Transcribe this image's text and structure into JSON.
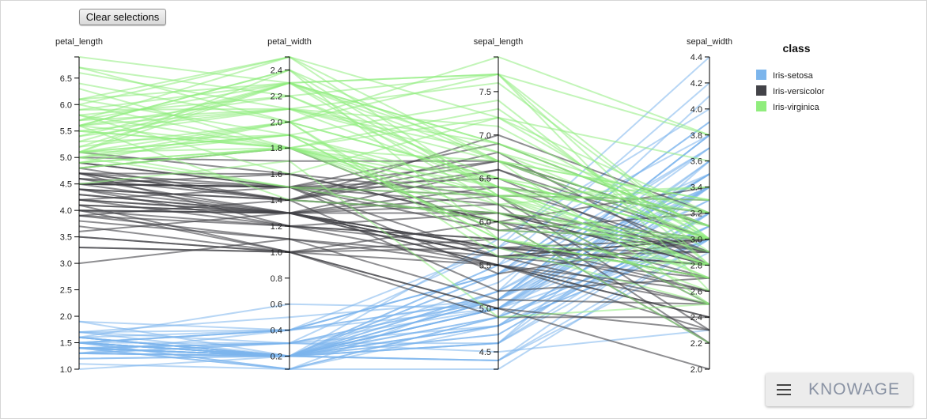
{
  "toolbar": {
    "clear_label": "Clear selections"
  },
  "brand": {
    "name": "KNOWAGE"
  },
  "chart_data": {
    "type": "parallel",
    "dimensions": [
      {
        "name": "petal_length",
        "range": [
          1.0,
          6.9
        ],
        "ticks": [
          "1.0",
          "1.5",
          "2.0",
          "2.5",
          "3.0",
          "3.5",
          "4.0",
          "4.5",
          "5.0",
          "5.5",
          "6.0",
          "6.5"
        ]
      },
      {
        "name": "petal_width",
        "range": [
          0.1,
          2.5
        ],
        "ticks": [
          "0.2",
          "0.4",
          "0.6",
          "0.8",
          "1.0",
          "1.2",
          "1.4",
          "1.6",
          "1.8",
          "2.0",
          "2.2",
          "2.4"
        ]
      },
      {
        "name": "sepal_length",
        "range": [
          4.3,
          7.9
        ],
        "ticks": [
          "4.5",
          "5.0",
          "5.5",
          "6.0",
          "6.5",
          "7.0",
          "7.5"
        ]
      },
      {
        "name": "sepal_width",
        "range": [
          2.0,
          4.4
        ],
        "ticks": [
          "2.0",
          "2.2",
          "2.4",
          "2.6",
          "2.8",
          "3.0",
          "3.2",
          "3.4",
          "3.6",
          "3.8",
          "4.0",
          "4.2",
          "4.4"
        ]
      }
    ],
    "legend": {
      "title": "class",
      "position": "right",
      "items": [
        {
          "label": "Iris-setosa",
          "color": "#7cb5ec"
        },
        {
          "label": "Iris-versicolor",
          "color": "#434348"
        },
        {
          "label": "Iris-virginica",
          "color": "#90ed7d"
        }
      ]
    },
    "series": [
      {
        "name": "Iris-setosa",
        "color": "#7cb5ec",
        "rows": [
          [
            1.4,
            0.2,
            5.1,
            3.5
          ],
          [
            1.4,
            0.2,
            4.9,
            3.0
          ],
          [
            1.3,
            0.2,
            4.7,
            3.2
          ],
          [
            1.5,
            0.2,
            4.6,
            3.1
          ],
          [
            1.4,
            0.2,
            5.0,
            3.6
          ],
          [
            1.7,
            0.4,
            5.4,
            3.9
          ],
          [
            1.4,
            0.3,
            4.6,
            3.4
          ],
          [
            1.5,
            0.2,
            5.0,
            3.4
          ],
          [
            1.4,
            0.2,
            4.4,
            2.9
          ],
          [
            1.5,
            0.1,
            4.9,
            3.1
          ],
          [
            1.5,
            0.2,
            5.4,
            3.7
          ],
          [
            1.6,
            0.2,
            4.8,
            3.4
          ],
          [
            1.4,
            0.1,
            4.8,
            3.0
          ],
          [
            1.1,
            0.1,
            4.3,
            3.0
          ],
          [
            1.2,
            0.2,
            5.8,
            4.0
          ],
          [
            1.5,
            0.4,
            5.7,
            4.4
          ],
          [
            1.3,
            0.4,
            5.4,
            3.9
          ],
          [
            1.4,
            0.3,
            5.1,
            3.5
          ],
          [
            1.7,
            0.3,
            5.7,
            3.8
          ],
          [
            1.5,
            0.3,
            5.1,
            3.8
          ],
          [
            1.7,
            0.2,
            5.4,
            3.4
          ],
          [
            1.5,
            0.4,
            5.1,
            3.7
          ],
          [
            1.0,
            0.2,
            4.6,
            3.6
          ],
          [
            1.7,
            0.5,
            5.1,
            3.3
          ],
          [
            1.9,
            0.2,
            4.8,
            3.4
          ],
          [
            1.6,
            0.2,
            5.0,
            3.0
          ],
          [
            1.6,
            0.4,
            5.0,
            3.4
          ],
          [
            1.5,
            0.2,
            5.2,
            3.5
          ],
          [
            1.4,
            0.2,
            5.2,
            3.4
          ],
          [
            1.6,
            0.2,
            4.7,
            3.2
          ],
          [
            1.6,
            0.2,
            4.8,
            3.1
          ],
          [
            1.5,
            0.4,
            5.4,
            3.4
          ],
          [
            1.5,
            0.1,
            5.2,
            4.1
          ],
          [
            1.4,
            0.2,
            5.5,
            4.2
          ],
          [
            1.5,
            0.2,
            4.9,
            3.1
          ],
          [
            1.2,
            0.2,
            5.0,
            3.2
          ],
          [
            1.3,
            0.2,
            5.5,
            3.5
          ],
          [
            1.4,
            0.1,
            4.9,
            3.6
          ],
          [
            1.3,
            0.2,
            4.4,
            3.0
          ],
          [
            1.5,
            0.2,
            5.1,
            3.4
          ],
          [
            1.3,
            0.3,
            5.0,
            3.5
          ],
          [
            1.3,
            0.3,
            4.5,
            2.3
          ],
          [
            1.3,
            0.2,
            4.4,
            3.2
          ],
          [
            1.6,
            0.6,
            5.0,
            3.5
          ],
          [
            1.9,
            0.4,
            5.1,
            3.8
          ],
          [
            1.4,
            0.3,
            4.8,
            3.0
          ],
          [
            1.6,
            0.2,
            5.1,
            3.8
          ],
          [
            1.4,
            0.2,
            4.6,
            3.2
          ],
          [
            1.5,
            0.2,
            5.3,
            3.7
          ],
          [
            1.4,
            0.2,
            5.0,
            3.3
          ]
        ]
      },
      {
        "name": "Iris-versicolor",
        "color": "#434348",
        "rows": [
          [
            4.7,
            1.4,
            7.0,
            3.2
          ],
          [
            4.5,
            1.5,
            6.4,
            3.2
          ],
          [
            4.9,
            1.5,
            6.9,
            3.1
          ],
          [
            4.0,
            1.3,
            5.5,
            2.3
          ],
          [
            4.6,
            1.5,
            6.5,
            2.8
          ],
          [
            4.5,
            1.3,
            5.7,
            2.8
          ],
          [
            4.7,
            1.6,
            6.3,
            3.3
          ],
          [
            3.3,
            1.0,
            4.9,
            2.4
          ],
          [
            4.6,
            1.3,
            6.6,
            2.9
          ],
          [
            3.9,
            1.4,
            5.2,
            2.7
          ],
          [
            3.5,
            1.0,
            5.0,
            2.0
          ],
          [
            4.2,
            1.5,
            5.9,
            3.0
          ],
          [
            4.0,
            1.0,
            6.0,
            2.2
          ],
          [
            4.7,
            1.4,
            6.1,
            2.9
          ],
          [
            3.6,
            1.3,
            5.6,
            2.9
          ],
          [
            4.4,
            1.4,
            6.7,
            3.1
          ],
          [
            4.5,
            1.5,
            5.6,
            3.0
          ],
          [
            4.1,
            1.0,
            5.8,
            2.7
          ],
          [
            4.5,
            1.5,
            6.2,
            2.2
          ],
          [
            3.9,
            1.1,
            5.6,
            2.5
          ],
          [
            4.8,
            1.8,
            5.9,
            3.2
          ],
          [
            4.0,
            1.3,
            6.1,
            2.8
          ],
          [
            4.9,
            1.5,
            6.3,
            2.5
          ],
          [
            4.7,
            1.2,
            6.1,
            2.8
          ],
          [
            4.3,
            1.3,
            6.4,
            2.9
          ],
          [
            4.4,
            1.4,
            6.6,
            3.0
          ],
          [
            4.8,
            1.4,
            6.8,
            2.8
          ],
          [
            5.0,
            1.7,
            6.7,
            3.0
          ],
          [
            4.5,
            1.5,
            6.0,
            2.9
          ],
          [
            3.5,
            1.0,
            5.7,
            2.6
          ],
          [
            3.8,
            1.1,
            5.5,
            2.4
          ],
          [
            3.7,
            1.0,
            5.5,
            2.4
          ],
          [
            3.9,
            1.2,
            5.8,
            2.7
          ],
          [
            5.1,
            1.6,
            6.0,
            2.7
          ],
          [
            4.5,
            1.5,
            5.4,
            3.0
          ],
          [
            4.5,
            1.6,
            6.0,
            3.4
          ],
          [
            4.7,
            1.5,
            6.7,
            3.1
          ],
          [
            4.4,
            1.3,
            6.3,
            2.3
          ],
          [
            4.1,
            1.3,
            5.6,
            3.0
          ],
          [
            4.0,
            1.3,
            5.5,
            2.5
          ],
          [
            4.4,
            1.2,
            5.5,
            2.6
          ],
          [
            4.6,
            1.4,
            6.1,
            3.0
          ],
          [
            4.0,
            1.2,
            5.8,
            2.6
          ],
          [
            3.3,
            1.0,
            5.0,
            2.3
          ],
          [
            4.2,
            1.3,
            5.6,
            2.7
          ],
          [
            4.2,
            1.2,
            5.7,
            3.0
          ],
          [
            4.2,
            1.3,
            5.7,
            2.9
          ],
          [
            4.3,
            1.3,
            6.2,
            2.9
          ],
          [
            3.0,
            1.1,
            5.1,
            2.5
          ],
          [
            4.1,
            1.3,
            5.7,
            2.8
          ]
        ]
      },
      {
        "name": "Iris-virginica",
        "color": "#90ed7d",
        "rows": [
          [
            6.0,
            2.5,
            6.3,
            3.3
          ],
          [
            5.1,
            1.9,
            5.8,
            2.7
          ],
          [
            5.9,
            2.1,
            7.1,
            3.0
          ],
          [
            5.6,
            1.8,
            6.3,
            2.9
          ],
          [
            5.8,
            2.2,
            6.5,
            3.0
          ],
          [
            6.6,
            2.1,
            7.6,
            3.0
          ],
          [
            4.5,
            1.7,
            4.9,
            2.5
          ],
          [
            6.3,
            1.8,
            7.3,
            2.9
          ],
          [
            5.8,
            1.8,
            6.7,
            2.5
          ],
          [
            6.1,
            2.5,
            7.2,
            3.6
          ],
          [
            5.1,
            2.0,
            6.5,
            3.2
          ],
          [
            5.3,
            1.9,
            6.4,
            2.7
          ],
          [
            5.5,
            2.1,
            6.8,
            3.0
          ],
          [
            5.0,
            2.0,
            5.7,
            2.5
          ],
          [
            5.1,
            2.4,
            5.8,
            2.8
          ],
          [
            5.3,
            2.3,
            6.4,
            3.2
          ],
          [
            5.5,
            1.8,
            6.5,
            3.0
          ],
          [
            6.7,
            2.2,
            7.7,
            3.8
          ],
          [
            6.9,
            2.3,
            7.7,
            2.6
          ],
          [
            5.0,
            1.5,
            6.0,
            2.2
          ],
          [
            5.7,
            2.3,
            6.9,
            3.2
          ],
          [
            4.9,
            2.0,
            5.6,
            2.8
          ],
          [
            6.7,
            2.0,
            7.7,
            2.8
          ],
          [
            4.9,
            1.8,
            6.3,
            2.7
          ],
          [
            5.7,
            2.1,
            6.7,
            3.3
          ],
          [
            6.0,
            1.8,
            7.2,
            3.2
          ],
          [
            4.8,
            1.8,
            6.2,
            2.8
          ],
          [
            4.9,
            1.8,
            6.1,
            3.0
          ],
          [
            5.6,
            2.1,
            6.4,
            2.8
          ],
          [
            5.8,
            1.6,
            7.2,
            3.0
          ],
          [
            6.1,
            1.9,
            7.4,
            2.8
          ],
          [
            6.4,
            2.0,
            7.9,
            3.8
          ],
          [
            5.6,
            2.2,
            6.4,
            2.8
          ],
          [
            5.1,
            1.5,
            6.3,
            2.8
          ],
          [
            5.6,
            1.4,
            6.1,
            2.6
          ],
          [
            6.1,
            2.3,
            7.7,
            3.0
          ],
          [
            5.6,
            2.4,
            6.3,
            3.4
          ],
          [
            5.5,
            1.8,
            6.4,
            3.1
          ],
          [
            4.8,
            1.8,
            6.0,
            3.0
          ],
          [
            5.4,
            2.1,
            6.9,
            3.1
          ],
          [
            5.6,
            2.4,
            6.7,
            3.1
          ],
          [
            5.1,
            2.3,
            6.9,
            3.1
          ],
          [
            5.1,
            1.9,
            5.8,
            2.7
          ],
          [
            5.9,
            2.3,
            6.8,
            3.2
          ],
          [
            5.7,
            2.5,
            6.7,
            3.3
          ],
          [
            5.2,
            2.3,
            6.7,
            3.0
          ],
          [
            5.0,
            1.9,
            6.3,
            2.5
          ],
          [
            5.2,
            2.0,
            6.5,
            3.0
          ],
          [
            5.4,
            2.3,
            6.2,
            3.4
          ],
          [
            5.1,
            1.8,
            5.9,
            3.0
          ]
        ]
      }
    ]
  }
}
